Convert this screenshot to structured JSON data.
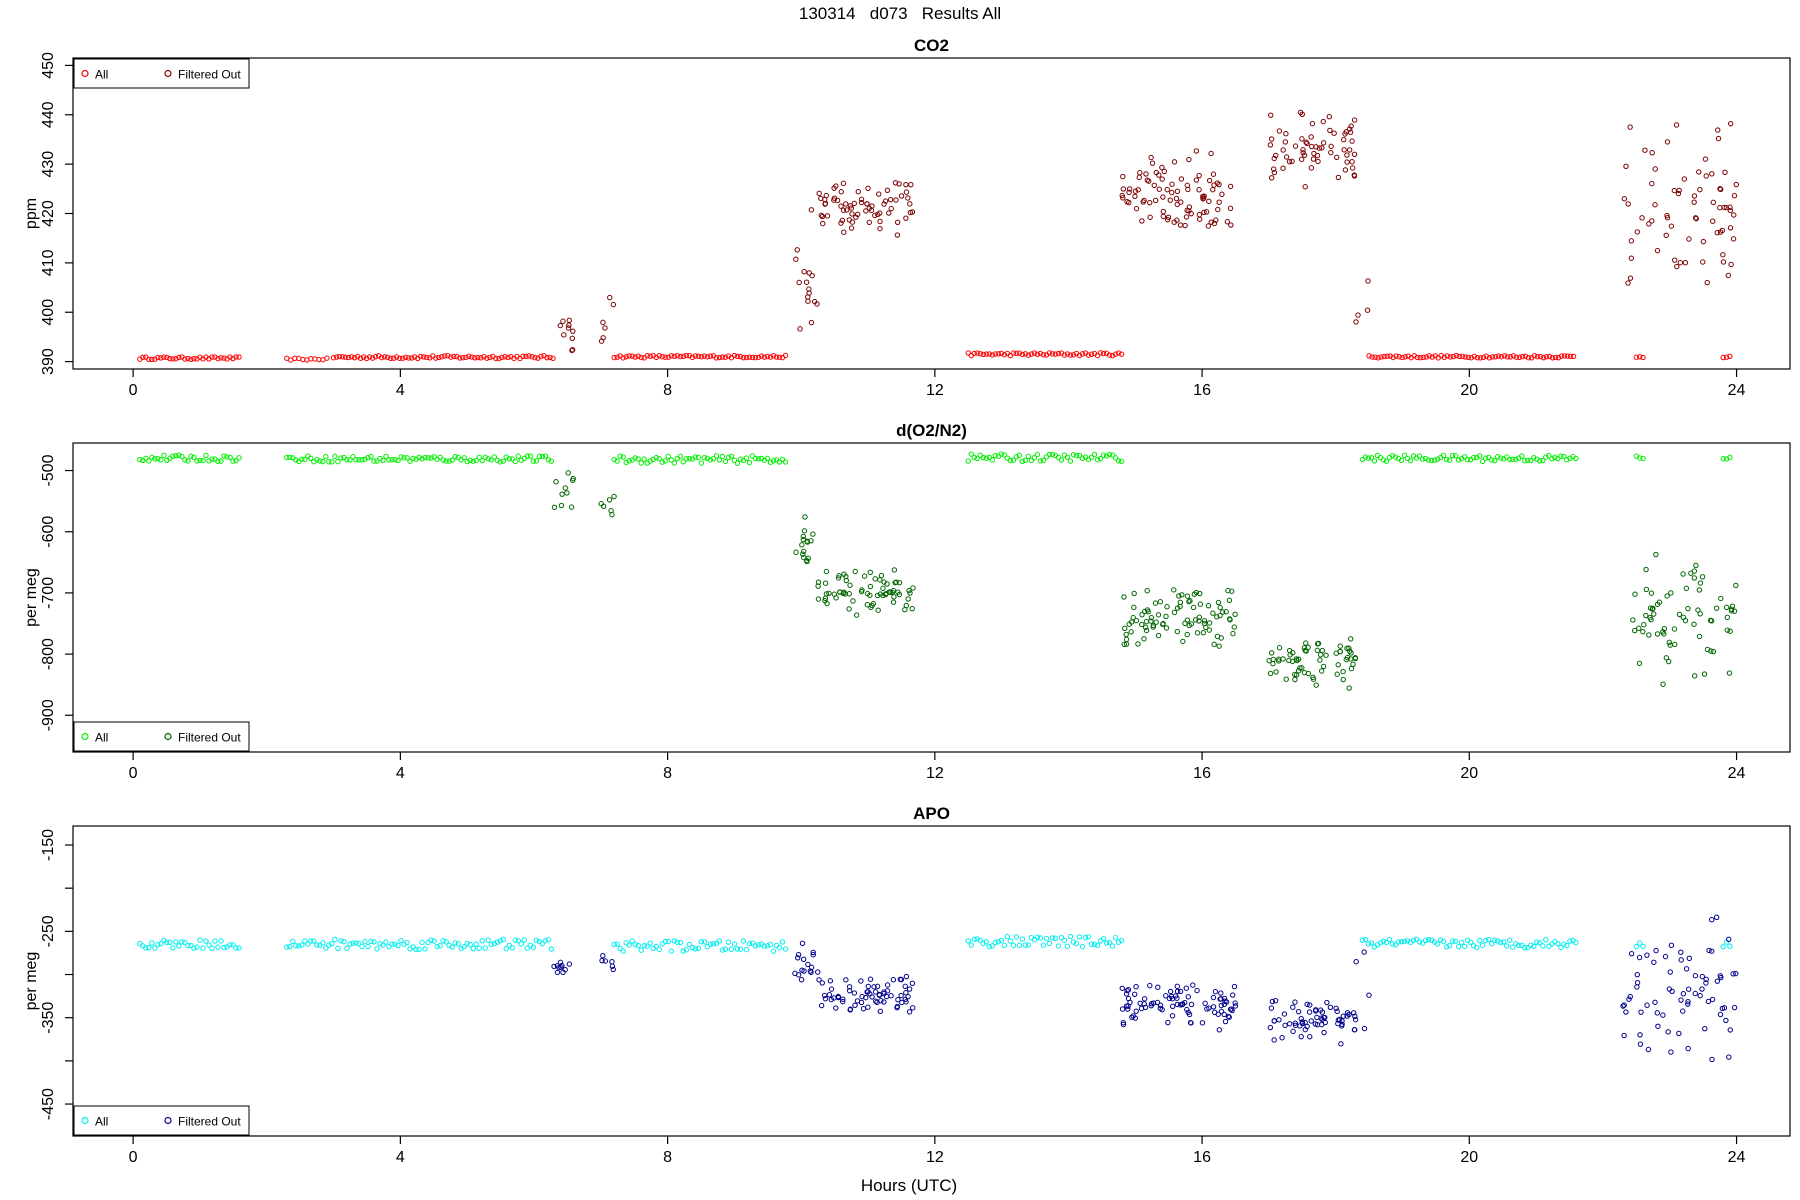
{
  "page_title": "130314   d073   Results All",
  "xlabel": "Hours (UTC)",
  "chart_data": [
    {
      "type": "scatter",
      "title": "CO2",
      "ylabel": "ppm",
      "xlim": [
        -0.9,
        24.8
      ],
      "ylim": [
        388.5,
        451.5
      ],
      "xticks": [
        0,
        4,
        8,
        12,
        16,
        20,
        24
      ],
      "yticks": [
        390,
        400,
        410,
        420,
        430,
        440,
        450
      ],
      "legend_position": "top-left",
      "legend": [
        "All",
        "Filtered Out"
      ],
      "colors": {
        "all": "#ff0000",
        "filtered": "#7a0000"
      },
      "stable": [
        {
          "x0": 0.1,
          "x1": 1.6,
          "y": 390.7,
          "amp": 0.25,
          "step": 0.045
        },
        {
          "x0": 2.3,
          "x1": 2.9,
          "y": 390.5,
          "amp": 0.2,
          "step": 0.06
        },
        {
          "x0": 3.0,
          "x1": 6.3,
          "y": 390.9,
          "amp": 0.3,
          "step": 0.045
        },
        {
          "x0": 7.2,
          "x1": 9.8,
          "y": 391.0,
          "amp": 0.25,
          "step": 0.045
        },
        {
          "x0": 12.5,
          "x1": 14.8,
          "y": 391.5,
          "amp": 0.3,
          "step": 0.045
        },
        {
          "x0": 18.5,
          "x1": 21.6,
          "y": 391.0,
          "amp": 0.25,
          "step": 0.045
        },
        {
          "x0": 22.5,
          "x1": 22.6,
          "y": 391.0,
          "amp": 0.2,
          "step": 0.05
        },
        {
          "x0": 23.8,
          "x1": 23.9,
          "y": 391.0,
          "amp": 0.2,
          "step": 0.05
        }
      ],
      "filtered": [
        {
          "x0": 6.3,
          "x1": 6.6,
          "center": 396,
          "spread": 6,
          "n": 10
        },
        {
          "x0": 7.0,
          "x1": 7.2,
          "center": 397,
          "spread": 7,
          "n": 6
        },
        {
          "x0": 9.9,
          "x1": 10.25,
          "center": 408,
          "spread": 16,
          "n": 16
        },
        {
          "x0": 10.25,
          "x1": 11.7,
          "center": 421,
          "spread": 6,
          "n": 70
        },
        {
          "x0": 14.8,
          "x1": 16.5,
          "center": 424,
          "spread": 10,
          "n": 90
        },
        {
          "x0": 17.0,
          "x1": 18.3,
          "center": 433,
          "spread": 8,
          "n": 65
        },
        {
          "x0": 18.3,
          "x1": 18.5,
          "center": 402,
          "spread": 10,
          "n": 4
        },
        {
          "x0": 22.3,
          "x1": 24.0,
          "center": 421,
          "spread": 20,
          "n": 70
        }
      ]
    },
    {
      "type": "scatter",
      "title": "d(O2/N2)",
      "ylabel": "per meg",
      "xlim": [
        -0.9,
        24.8
      ],
      "ylim": [
        -960,
        -455
      ],
      "xticks": [
        0,
        4,
        8,
        12,
        16,
        20,
        24
      ],
      "yticks": [
        -500,
        -600,
        -700,
        -800,
        -900
      ],
      "legend_position": "bottom-left",
      "legend": [
        "All",
        "Filtered Out"
      ],
      "colors": {
        "all": "#00ee00",
        "filtered": "#006400"
      },
      "stable": [
        {
          "x0": 0.1,
          "x1": 1.6,
          "y": -480,
          "amp": 5,
          "step": 0.045
        },
        {
          "x0": 2.3,
          "x1": 6.3,
          "y": -481,
          "amp": 5,
          "step": 0.045
        },
        {
          "x0": 7.2,
          "x1": 9.8,
          "y": -482,
          "amp": 6,
          "step": 0.045
        },
        {
          "x0": 12.5,
          "x1": 14.8,
          "y": -479,
          "amp": 6,
          "step": 0.045
        },
        {
          "x0": 18.4,
          "x1": 21.6,
          "y": -480,
          "amp": 5,
          "step": 0.045
        },
        {
          "x0": 22.5,
          "x1": 22.6,
          "y": -479,
          "amp": 4,
          "step": 0.05
        },
        {
          "x0": 23.8,
          "x1": 23.9,
          "y": -479,
          "amp": 4,
          "step": 0.05
        }
      ],
      "filtered": [
        {
          "x0": 6.3,
          "x1": 6.6,
          "center": -530,
          "spread": 40,
          "n": 10
        },
        {
          "x0": 7.0,
          "x1": 7.2,
          "center": -555,
          "spread": 25,
          "n": 6
        },
        {
          "x0": 9.9,
          "x1": 10.25,
          "center": -620,
          "spread": 70,
          "n": 16
        },
        {
          "x0": 10.25,
          "x1": 11.7,
          "center": -700,
          "spread": 40,
          "n": 70
        },
        {
          "x0": 14.8,
          "x1": 16.5,
          "center": -740,
          "spread": 60,
          "n": 90
        },
        {
          "x0": 17.0,
          "x1": 18.3,
          "center": -810,
          "spread": 50,
          "n": 65
        },
        {
          "x0": 22.3,
          "x1": 24.0,
          "center": -740,
          "spread": 120,
          "n": 70
        }
      ]
    },
    {
      "type": "scatter",
      "title": "APO",
      "ylabel": "per meg",
      "xlim": [
        -0.9,
        24.8
      ],
      "ylim": [
        -487,
        -128
      ],
      "xticks": [
        0,
        4,
        8,
        12,
        16,
        20,
        24
      ],
      "yticks": [
        -150,
        -200,
        -250,
        -300,
        -350,
        -400,
        -450
      ],
      "ytick_labels": [
        "-150",
        "",
        "-250",
        "",
        "-350",
        "",
        "-450"
      ],
      "legend_position": "bottom-left",
      "legend": [
        "All",
        "Filtered Out"
      ],
      "colors": {
        "all": "#00eeee",
        "filtered": "#00008b"
      },
      "stable": [
        {
          "x0": 0.1,
          "x1": 1.6,
          "y": -265,
          "amp": 5,
          "step": 0.045
        },
        {
          "x0": 2.3,
          "x1": 6.3,
          "y": -265,
          "amp": 6,
          "step": 0.045
        },
        {
          "x0": 7.2,
          "x1": 9.8,
          "y": -267,
          "amp": 6,
          "step": 0.045
        },
        {
          "x0": 12.5,
          "x1": 14.8,
          "y": -262,
          "amp": 6,
          "step": 0.045
        },
        {
          "x0": 18.4,
          "x1": 21.6,
          "y": -264,
          "amp": 5,
          "step": 0.045
        },
        {
          "x0": 22.5,
          "x1": 22.6,
          "y": -266,
          "amp": 4,
          "step": 0.05
        },
        {
          "x0": 23.8,
          "x1": 23.9,
          "y": -264,
          "amp": 4,
          "step": 0.05
        }
      ],
      "filtered": [
        {
          "x0": 6.3,
          "x1": 6.6,
          "center": -290,
          "spread": 15,
          "n": 10
        },
        {
          "x0": 7.0,
          "x1": 7.2,
          "center": -285,
          "spread": 12,
          "n": 6
        },
        {
          "x0": 9.9,
          "x1": 10.25,
          "center": -290,
          "spread": 30,
          "n": 16
        },
        {
          "x0": 10.25,
          "x1": 11.7,
          "center": -325,
          "spread": 25,
          "n": 70
        },
        {
          "x0": 14.8,
          "x1": 16.5,
          "center": -335,
          "spread": 30,
          "n": 90
        },
        {
          "x0": 17.0,
          "x1": 18.3,
          "center": -355,
          "spread": 30,
          "n": 65
        },
        {
          "x0": 18.3,
          "x1": 18.5,
          "center": -300,
          "spread": 120,
          "n": 4
        },
        {
          "x0": 22.3,
          "x1": 24.0,
          "center": -320,
          "spread": 90,
          "n": 70
        }
      ]
    }
  ]
}
